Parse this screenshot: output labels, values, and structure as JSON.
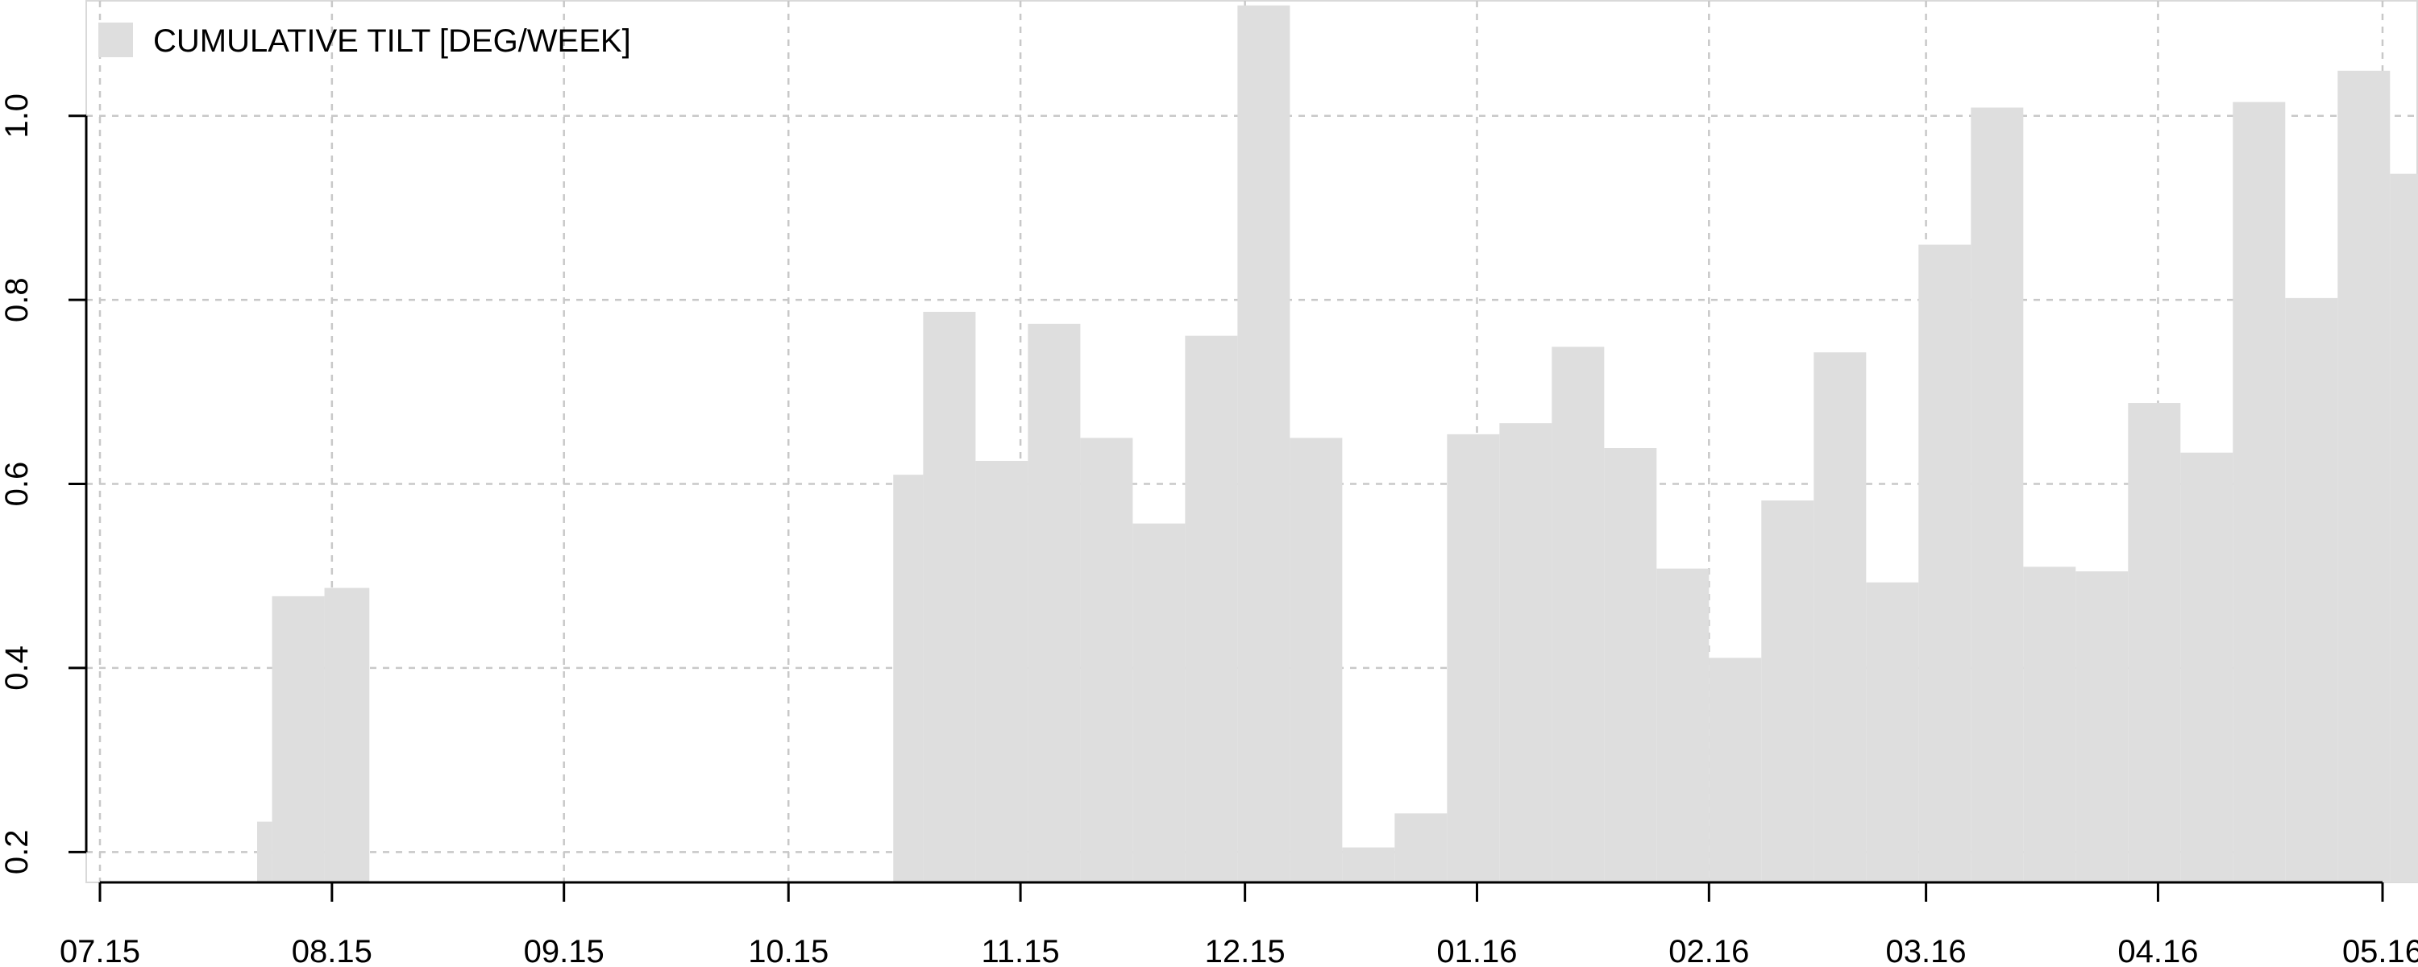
{
  "chart_data": {
    "type": "bar",
    "legend": {
      "label": "CUMULATIVE TILT [DEG/WEEK]",
      "position": "top-left"
    },
    "x_tick_labels": [
      "07.15",
      "08.15",
      "09.15",
      "10.15",
      "11.15",
      "12.15",
      "01.16",
      "02.16",
      "03.16",
      "04.16",
      "05.16"
    ],
    "ylim": [
      0.167,
      1.125
    ],
    "y_ticks": [
      0.2,
      0.4,
      0.6,
      0.8,
      1.0
    ],
    "y_tick_labels": [
      "0.2",
      "0.4",
      "0.6",
      "0.8",
      "1.0"
    ],
    "grid": true,
    "bar_color": "#dedede",
    "series": [
      {
        "bins": [
          {
            "start": "2015-07-22",
            "end": "2015-07-24",
            "value": 0.233
          },
          {
            "start": "2015-07-24",
            "end": "2015-07-31",
            "value": 0.478
          },
          {
            "start": "2015-07-31",
            "end": "2015-08-06",
            "value": 0.487
          },
          {
            "start": "2015-10-15",
            "end": "2015-10-19",
            "value": 0.61
          },
          {
            "start": "2015-10-19",
            "end": "2015-10-26",
            "value": 0.787
          },
          {
            "start": "2015-10-26",
            "end": "2015-11-02",
            "value": 0.625
          },
          {
            "start": "2015-11-02",
            "end": "2015-11-09",
            "value": 0.774
          },
          {
            "start": "2015-11-09",
            "end": "2015-11-16",
            "value": 0.65
          },
          {
            "start": "2015-11-16",
            "end": "2015-11-23",
            "value": 0.557
          },
          {
            "start": "2015-11-23",
            "end": "2015-11-30",
            "value": 0.761
          },
          {
            "start": "2015-11-30",
            "end": "2015-12-07",
            "value": 1.12
          },
          {
            "start": "2015-12-07",
            "end": "2015-12-14",
            "value": 0.65
          },
          {
            "start": "2015-12-14",
            "end": "2015-12-21",
            "value": 0.205
          },
          {
            "start": "2015-12-21",
            "end": "2015-12-28",
            "value": 0.242
          },
          {
            "start": "2015-12-28",
            "end": "2016-01-04",
            "value": 0.654
          },
          {
            "start": "2016-01-04",
            "end": "2016-01-11",
            "value": 0.666
          },
          {
            "start": "2016-01-11",
            "end": "2016-01-18",
            "value": 0.749
          },
          {
            "start": "2016-01-18",
            "end": "2016-01-25",
            "value": 0.639
          },
          {
            "start": "2016-01-25",
            "end": "2016-02-01",
            "value": 0.508
          },
          {
            "start": "2016-02-01",
            "end": "2016-02-08",
            "value": 0.411
          },
          {
            "start": "2016-02-08",
            "end": "2016-02-15",
            "value": 0.582
          },
          {
            "start": "2016-02-15",
            "end": "2016-02-22",
            "value": 0.743
          },
          {
            "start": "2016-02-22",
            "end": "2016-02-29",
            "value": 0.493
          },
          {
            "start": "2016-02-29",
            "end": "2016-03-07",
            "value": 0.86
          },
          {
            "start": "2016-03-07",
            "end": "2016-03-14",
            "value": 1.009
          },
          {
            "start": "2016-03-14",
            "end": "2016-03-21",
            "value": 0.51
          },
          {
            "start": "2016-03-21",
            "end": "2016-03-28",
            "value": 0.505
          },
          {
            "start": "2016-03-28",
            "end": "2016-04-04",
            "value": 0.688
          },
          {
            "start": "2016-04-04",
            "end": "2016-04-11",
            "value": 0.634
          },
          {
            "start": "2016-04-11",
            "end": "2016-04-18",
            "value": 1.015
          },
          {
            "start": "2016-04-18",
            "end": "2016-04-25",
            "value": 0.802
          },
          {
            "start": "2016-04-25",
            "end": "2016-05-02",
            "value": 1.049
          },
          {
            "start": "2016-05-02",
            "end": "2016-05-09",
            "value": 0.937
          }
        ]
      }
    ]
  }
}
